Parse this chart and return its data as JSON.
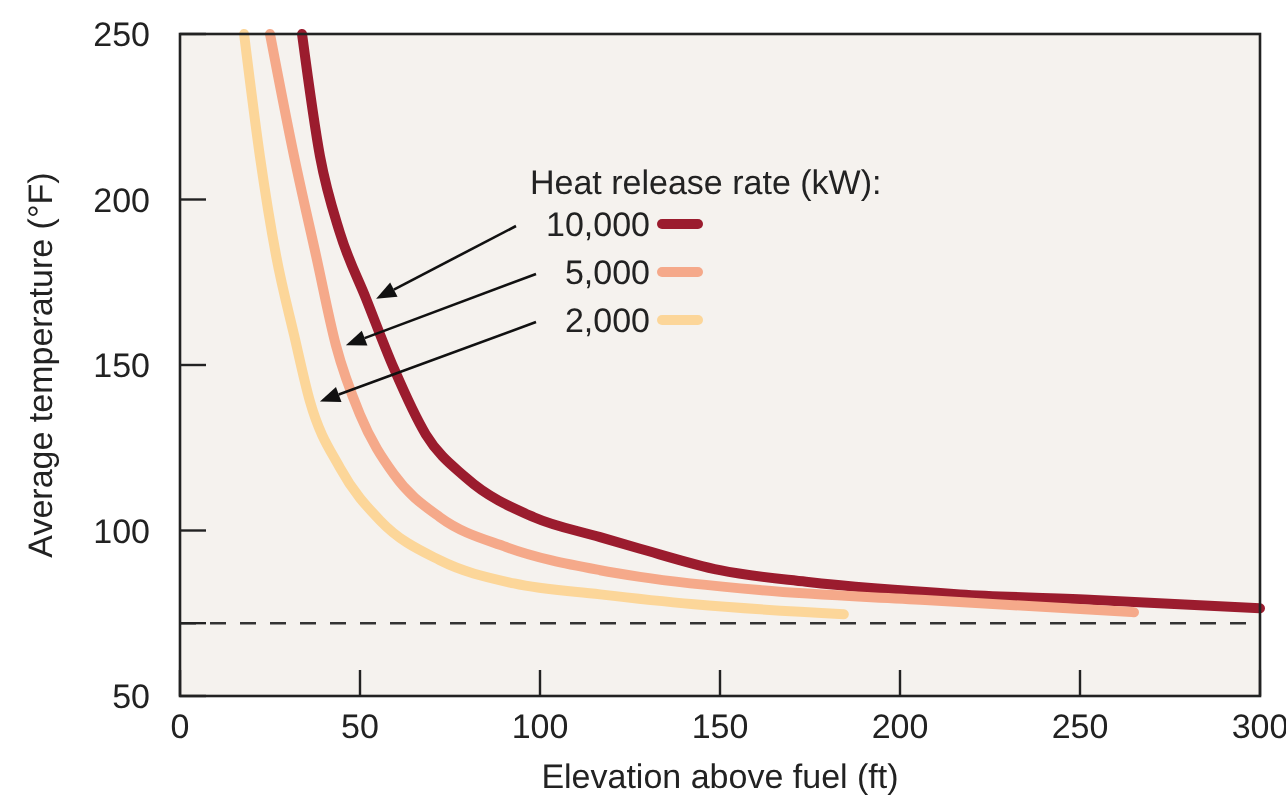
{
  "chart_data": {
    "type": "line",
    "xlabel": "Elevation above fuel (ft)",
    "ylabel": "Average temperature (°F)",
    "legend_title": "Heat release rate (kW):",
    "xlim": [
      0,
      300
    ],
    "xticks": [
      0,
      50,
      100,
      150,
      200,
      250,
      300
    ],
    "ylim": [
      50,
      250
    ],
    "yticks": [
      50,
      {
        "value": 72,
        "label": null
      },
      100,
      150,
      200,
      250
    ],
    "grid": false,
    "legend": "top",
    "marker": "none",
    "line_style": "solid",
    "ref_lines": [
      {
        "axis": "y",
        "value": 72,
        "line_style": "dashed",
        "color": "#333333"
      }
    ],
    "series": [
      {
        "name": "10,000",
        "color": "#9b1c2e",
        "x": [
          33.9,
          38.9,
          44.4,
          51.7,
          59.4,
          68.3,
          79.4,
          98.3,
          116.7,
          127.8,
          150,
          173.9,
          216.7,
          253.9,
          300
        ],
        "values": [
          250,
          213,
          190,
          170,
          149,
          129,
          116,
          104,
          98,
          94.5,
          88,
          84.5,
          80.7,
          79,
          76.5
        ]
      },
      {
        "name": "5,000",
        "color": "#f5a98a",
        "x": [
          25,
          31.7,
          37.8,
          43.3,
          50,
          59.4,
          72.2,
          90.6,
          116.7,
          127.8,
          161,
          207,
          265
        ],
        "values": [
          250,
          213,
          183,
          156,
          135,
          117,
          104,
          95,
          88,
          86,
          82,
          79,
          75.3
        ]
      },
      {
        "name": "2,000",
        "color": "#fcd699",
        "x": [
          17.8,
          22.2,
          26.7,
          31.7,
          36.1,
          44.4,
          55.6,
          72.2,
          92.8,
          116.7,
          142.8,
          184.4
        ],
        "values": [
          250,
          213,
          183,
          159,
          139,
          119,
          103,
          91,
          84,
          80.7,
          77.7,
          74.7
        ]
      }
    ]
  }
}
